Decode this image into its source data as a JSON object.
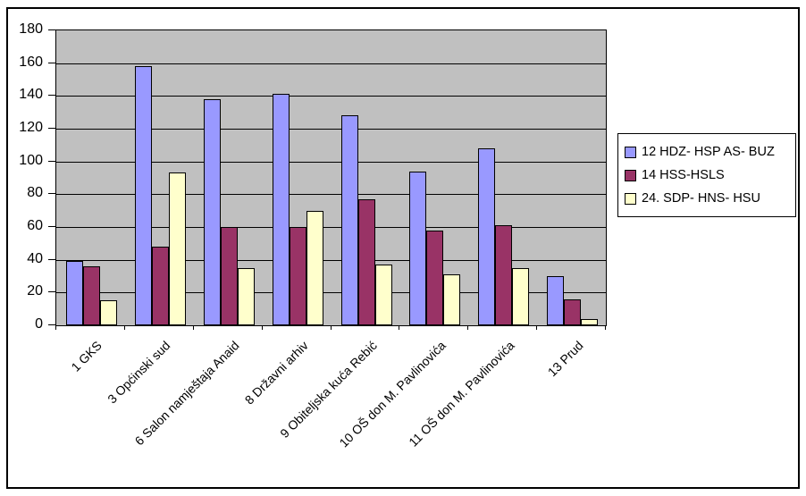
{
  "chart_data": {
    "type": "bar",
    "title": "",
    "xlabel": "",
    "ylabel": "",
    "categories": [
      "1 GKS",
      "3 Općinski sud",
      "6 Salon namještaja Anaid",
      "8 Državni arhiv",
      "9 Obiteljska kuća Rebić",
      "10 OŠ don M. Pavlinovića",
      "11 OŠ don M. Pavlinovića",
      "13 Prud"
    ],
    "series": [
      {
        "name": "12 HDZ- HSP AS- BUZ",
        "color": "#9999FF",
        "values": [
          39,
          158,
          138,
          141,
          128,
          94,
          108,
          30
        ]
      },
      {
        "name": "14 HSS-HSLS",
        "color": "#993366",
        "values": [
          36,
          48,
          60,
          60,
          77,
          58,
          61,
          16
        ]
      },
      {
        "name": "24. SDP- HNS- HSU",
        "color": "#FFFFCC",
        "values": [
          15,
          93,
          35,
          70,
          37,
          31,
          35,
          4
        ]
      }
    ],
    "ylim": [
      0,
      180
    ],
    "ytick_step": 20,
    "grid": "horizontal",
    "legend_position": "right",
    "colors": {
      "plot_background": "#C0C0C0",
      "gridline": "#000000",
      "bar_border": "#000000",
      "axis": "#000000",
      "frame_border": "#000000",
      "page_background": "#FFFFFF"
    }
  }
}
